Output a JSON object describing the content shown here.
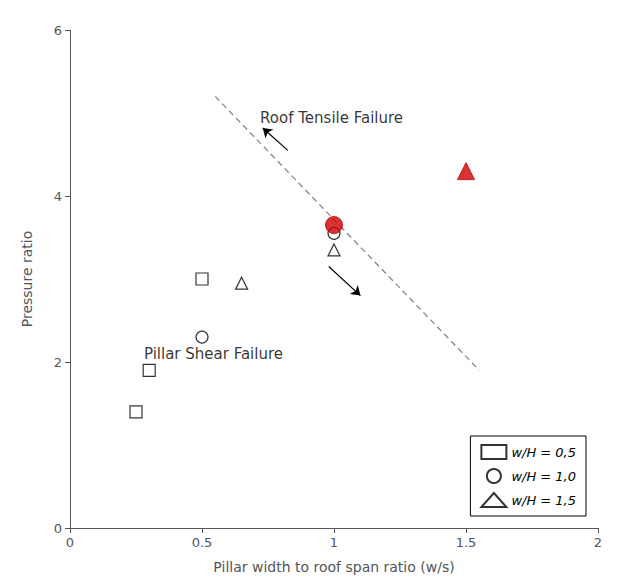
{
  "chart_data": {
    "type": "scatter",
    "xlabel": "Pillar width to roof span ratio (w/s)",
    "ylabel": "Pressure ratio",
    "xlim": [
      0,
      2
    ],
    "ylim": [
      0,
      6
    ],
    "xticks": [
      0,
      0.5,
      1,
      1.5,
      2
    ],
    "yticks": [
      0,
      2,
      4,
      6
    ],
    "grid": false,
    "legend": "lower right",
    "series": [
      {
        "name": "w/H = 0,5",
        "type": "scatter",
        "marker": "open_square",
        "color": "#000000",
        "x": [
          0.25,
          0.3,
          0.5
        ],
        "values": [
          1.4,
          1.9,
          3.0
        ]
      },
      {
        "name": "w/H = 1,0",
        "type": "scatter",
        "marker": "open_circle",
        "color": "#000000",
        "x": [
          0.5,
          1.0
        ],
        "values": [
          2.3,
          3.55
        ]
      },
      {
        "name": "w/H = 1,5",
        "type": "scatter",
        "marker": "open_triangle",
        "color": "#000000",
        "x": [
          0.65,
          1.0
        ],
        "values": [
          2.95,
          3.35
        ]
      },
      {
        "type": "scatter",
        "marker": "circle",
        "color": "#cc0000",
        "x": [
          1.0
        ],
        "values": [
          3.65
        ]
      },
      {
        "type": "scatter",
        "marker": "triangle",
        "color": "#cc0000",
        "x": [
          1.5
        ],
        "values": [
          4.3
        ]
      },
      {
        "type": "line",
        "line_style": "dashed",
        "color": "#888888",
        "x": [
          0.55,
          1.55
        ],
        "values": [
          5.2,
          1.9
        ]
      }
    ],
    "annotations": [
      {
        "text": "Roof Tensile Failure",
        "x": 0.72,
        "y": 4.85,
        "color": "#000000"
      },
      {
        "text": "Pillar Shear Failure",
        "x": 0.28,
        "y": 2.1,
        "color": "#000000"
      }
    ],
    "arrows": [
      {
        "from": [
          0.825,
          4.55
        ],
        "to": [
          0.73,
          4.82
        ],
        "color": "#000000"
      },
      {
        "from": [
          0.98,
          3.15
        ],
        "to": [
          1.1,
          2.8
        ],
        "color": "#000000"
      }
    ]
  }
}
